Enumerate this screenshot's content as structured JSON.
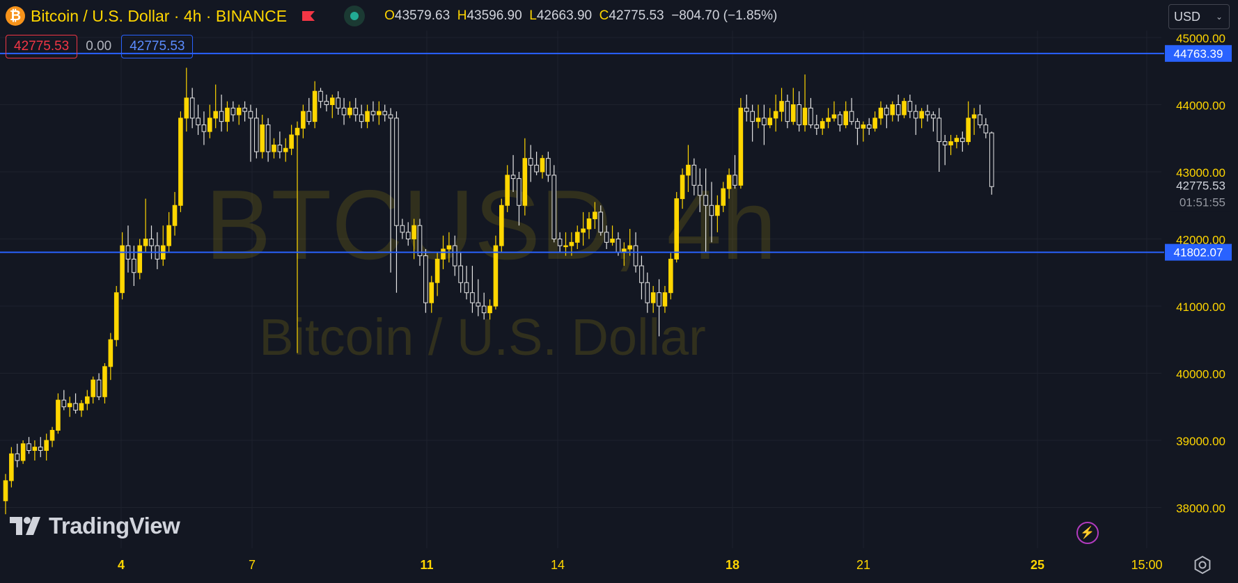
{
  "header": {
    "symbol_title": "Bitcoin / U.S. Dollar · 4h · BINANCE",
    "ohlc": {
      "o_label": "O",
      "o": "43579.63",
      "h_label": "H",
      "h": "43596.90",
      "l_label": "L",
      "l": "42663.90",
      "c_label": "C",
      "c": "42775.53",
      "change": "−804.70 (−1.85%)"
    },
    "sell_price": "42775.53",
    "spread": "0.00",
    "buy_price": "42775.53",
    "currency": "USD"
  },
  "watermark": {
    "line1": "BTCUSD, 4h",
    "line2": "Bitcoin / U.S. Dollar"
  },
  "branding": {
    "logo_text": "TradingView"
  },
  "colors": {
    "background": "#131722",
    "candle": "#ffd600",
    "axis_text": "#ffd600",
    "hline": "#2962ff",
    "grid": "#1e222d"
  },
  "chart_data": {
    "type": "candlestick",
    "timeframe": "4h",
    "ylim": [
      37500,
      45000
    ],
    "y_ticks": [
      "38000.00",
      "39000.00",
      "40000.00",
      "41000.00",
      "42000.00",
      "43000.00",
      "44000.00",
      "45000.00"
    ],
    "x_tick_labels": [
      {
        "label": "4",
        "bold": true
      },
      {
        "label": "7",
        "bold": false
      },
      {
        "label": "11",
        "bold": true
      },
      {
        "label": "14",
        "bold": false
      },
      {
        "label": "18",
        "bold": true
      },
      {
        "label": "21",
        "bold": false
      },
      {
        "label": "25",
        "bold": true
      },
      {
        "label": "15:00",
        "bold": false
      }
    ],
    "horizontal_lines": [
      {
        "price": 44763.39,
        "label": "44763.39"
      },
      {
        "price": 41802.07,
        "label": "41802.07"
      }
    ],
    "last_price": {
      "value": "42775.53",
      "countdown": "01:51:55"
    },
    "candles_ohlc": [
      [
        38100,
        38500,
        37900,
        38400
      ],
      [
        38400,
        38900,
        38300,
        38800
      ],
      [
        38800,
        38950,
        38600,
        38700
      ],
      [
        38700,
        39000,
        38650,
        38950
      ],
      [
        38950,
        39050,
        38800,
        38850
      ],
      [
        38850,
        39000,
        38700,
        38900
      ],
      [
        38900,
        39050,
        38750,
        38850
      ],
      [
        38850,
        39100,
        38700,
        39000
      ],
      [
        39000,
        39200,
        38900,
        39150
      ],
      [
        39150,
        39700,
        39100,
        39600
      ],
      [
        39600,
        39750,
        39450,
        39500
      ],
      [
        39500,
        39650,
        39350,
        39550
      ],
      [
        39550,
        39700,
        39400,
        39450
      ],
      [
        39450,
        39600,
        39350,
        39550
      ],
      [
        39550,
        39750,
        39450,
        39650
      ],
      [
        39650,
        39950,
        39550,
        39900
      ],
      [
        39900,
        40000,
        39600,
        39650
      ],
      [
        39650,
        40150,
        39550,
        40100
      ],
      [
        40100,
        40600,
        39900,
        40500
      ],
      [
        40500,
        41300,
        40400,
        41200
      ],
      [
        41200,
        42100,
        41100,
        41900
      ],
      [
        41900,
        42200,
        41500,
        41700
      ],
      [
        41700,
        41900,
        41300,
        41500
      ],
      [
        41500,
        42000,
        41400,
        41900
      ],
      [
        41900,
        42600,
        41800,
        42000
      ],
      [
        42000,
        42200,
        41700,
        41900
      ],
      [
        41900,
        42100,
        41550,
        41700
      ],
      [
        41700,
        42200,
        41600,
        41900
      ],
      [
        41900,
        42400,
        41800,
        42200
      ],
      [
        42200,
        42700,
        42050,
        42500
      ],
      [
        42500,
        43900,
        42400,
        43800
      ],
      [
        43800,
        44550,
        43600,
        44100
      ],
      [
        44100,
        44250,
        43650,
        43800
      ],
      [
        43800,
        44000,
        43550,
        43700
      ],
      [
        43700,
        43900,
        43400,
        43600
      ],
      [
        43600,
        44000,
        43500,
        43800
      ],
      [
        43800,
        44300,
        43650,
        43900
      ],
      [
        43900,
        44150,
        43600,
        43750
      ],
      [
        43750,
        44050,
        43600,
        43950
      ],
      [
        43950,
        44050,
        43750,
        43850
      ],
      [
        43850,
        44000,
        43700,
        43950
      ],
      [
        43950,
        44050,
        43750,
        43900
      ],
      [
        43900,
        44000,
        43150,
        43800
      ],
      [
        43800,
        43950,
        43200,
        43300
      ],
      [
        43300,
        43850,
        43200,
        43700
      ],
      [
        43700,
        43800,
        43150,
        43300
      ],
      [
        43300,
        43500,
        43200,
        43400
      ],
      [
        43400,
        43600,
        43200,
        43300
      ],
      [
        43300,
        43500,
        43150,
        43350
      ],
      [
        43350,
        43700,
        43250,
        43550
      ],
      [
        43550,
        43750,
        40300,
        43650
      ],
      [
        43650,
        44000,
        43500,
        43900
      ],
      [
        43900,
        44100,
        43700,
        43750
      ],
      [
        43750,
        44350,
        43650,
        44200
      ],
      [
        44200,
        44250,
        43950,
        44050
      ],
      [
        44050,
        44150,
        43900,
        44000
      ],
      [
        44000,
        44150,
        43800,
        44100
      ],
      [
        44100,
        44200,
        43850,
        43950
      ],
      [
        43950,
        44100,
        43700,
        43850
      ],
      [
        43850,
        44050,
        43800,
        43950
      ],
      [
        43950,
        44100,
        43750,
        43850
      ],
      [
        43850,
        44000,
        43650,
        43750
      ],
      [
        43750,
        44000,
        43650,
        43900
      ],
      [
        43900,
        44050,
        43750,
        43850
      ],
      [
        43850,
        44050,
        43700,
        43900
      ],
      [
        43900,
        44000,
        43750,
        43850
      ],
      [
        43850,
        43950,
        41500,
        43800
      ],
      [
        43800,
        43900,
        41200,
        42200
      ],
      [
        42200,
        42300,
        42000,
        42100
      ],
      [
        42100,
        42250,
        41900,
        42000
      ],
      [
        42000,
        42300,
        41700,
        42200
      ],
      [
        42200,
        42300,
        41600,
        41750
      ],
      [
        41750,
        41850,
        40900,
        41050
      ],
      [
        41050,
        41450,
        40900,
        41350
      ],
      [
        41350,
        41800,
        41150,
        41700
      ],
      [
        41700,
        42050,
        41550,
        41850
      ],
      [
        41850,
        42100,
        41650,
        41900
      ],
      [
        41900,
        42050,
        41450,
        41600
      ],
      [
        41600,
        41800,
        41200,
        41350
      ],
      [
        41350,
        41600,
        41100,
        41200
      ],
      [
        41200,
        41600,
        40900,
        41050
      ],
      [
        41050,
        41400,
        40850,
        41000
      ],
      [
        41000,
        41200,
        40800,
        40900
      ],
      [
        40900,
        41100,
        40800,
        41000
      ],
      [
        41000,
        42050,
        40950,
        41900
      ],
      [
        41900,
        42600,
        41800,
        42500
      ],
      [
        42500,
        43100,
        42400,
        42950
      ],
      [
        42950,
        43250,
        42700,
        42900
      ],
      [
        42900,
        43000,
        42200,
        42500
      ],
      [
        42500,
        43500,
        42350,
        43200
      ],
      [
        43200,
        43400,
        42850,
        43100
      ],
      [
        43100,
        43300,
        42950,
        43000
      ],
      [
        43000,
        43250,
        42900,
        43200
      ],
      [
        43200,
        43300,
        42850,
        42950
      ],
      [
        42950,
        43100,
        41950,
        42000
      ],
      [
        42000,
        42100,
        41800,
        41900
      ],
      [
        41900,
        42100,
        41750,
        41900
      ],
      [
        41900,
        42100,
        41750,
        41950
      ],
      [
        41950,
        42200,
        41850,
        42100
      ],
      [
        42100,
        42400,
        41900,
        42150
      ],
      [
        42150,
        42400,
        42000,
        42300
      ],
      [
        42300,
        42550,
        42150,
        42400
      ],
      [
        42400,
        42500,
        42050,
        42100
      ],
      [
        42100,
        42200,
        41850,
        41950
      ],
      [
        41950,
        42200,
        41900,
        42000
      ],
      [
        42000,
        42100,
        41750,
        41800
      ],
      [
        41800,
        41950,
        41600,
        41850
      ],
      [
        41850,
        42150,
        41750,
        41900
      ],
      [
        41900,
        42100,
        41500,
        41600
      ],
      [
        41600,
        41750,
        41100,
        41350
      ],
      [
        41350,
        41500,
        40900,
        41050
      ],
      [
        41050,
        41300,
        40900,
        41200
      ],
      [
        41200,
        41400,
        40550,
        41000
      ],
      [
        41000,
        41300,
        40900,
        41200
      ],
      [
        41200,
        41800,
        41100,
        41700
      ],
      [
        41700,
        42700,
        41650,
        42600
      ],
      [
        42600,
        43050,
        42450,
        42950
      ],
      [
        42950,
        43400,
        42700,
        43100
      ],
      [
        43100,
        43200,
        42650,
        42800
      ],
      [
        42800,
        43050,
        42400,
        42650
      ],
      [
        42650,
        43050,
        41800,
        42500
      ],
      [
        42500,
        42850,
        41950,
        42350
      ],
      [
        42350,
        42650,
        42100,
        42500
      ],
      [
        42500,
        42850,
        42400,
        42750
      ],
      [
        42750,
        43050,
        42600,
        42950
      ],
      [
        42950,
        43250,
        42750,
        42800
      ],
      [
        42800,
        44100,
        42750,
        43950
      ],
      [
        43950,
        44150,
        43750,
        43900
      ],
      [
        43900,
        44000,
        43450,
        43750
      ],
      [
        43750,
        44000,
        43650,
        43800
      ],
      [
        43800,
        44000,
        43400,
        43700
      ],
      [
        43700,
        43950,
        43650,
        43800
      ],
      [
        43800,
        44150,
        43600,
        43900
      ],
      [
        43900,
        44250,
        43750,
        44050
      ],
      [
        44050,
        44150,
        43650,
        43750
      ],
      [
        43750,
        44250,
        43700,
        44000
      ],
      [
        44000,
        44200,
        43600,
        43700
      ],
      [
        43700,
        44450,
        43600,
        43950
      ],
      [
        43950,
        44100,
        43650,
        43700
      ],
      [
        43700,
        43850,
        43550,
        43650
      ],
      [
        43650,
        43800,
        43550,
        43750
      ],
      [
        43750,
        43950,
        43650,
        43800
      ],
      [
        43800,
        44050,
        43750,
        43850
      ],
      [
        43850,
        43900,
        43600,
        43700
      ],
      [
        43700,
        44050,
        43650,
        43900
      ],
      [
        43900,
        44100,
        43700,
        43750
      ],
      [
        43750,
        43800,
        43400,
        43650
      ],
      [
        43650,
        43750,
        43450,
        43700
      ],
      [
        43700,
        43800,
        43550,
        43650
      ],
      [
        43650,
        43900,
        43600,
        43800
      ],
      [
        43800,
        44050,
        43700,
        43950
      ],
      [
        43950,
        44000,
        43650,
        43850
      ],
      [
        43850,
        44050,
        43750,
        44000
      ],
      [
        44000,
        44150,
        43750,
        43850
      ],
      [
        43850,
        44100,
        43800,
        44050
      ],
      [
        44050,
        44150,
        43800,
        43900
      ],
      [
        43900,
        44000,
        43550,
        43800
      ],
      [
        43800,
        43950,
        43650,
        43900
      ],
      [
        43900,
        44000,
        43750,
        43850
      ],
      [
        43850,
        43900,
        43600,
        43800
      ],
      [
        43800,
        43950,
        43000,
        43450
      ],
      [
        43450,
        43550,
        43100,
        43400
      ],
      [
        43400,
        43550,
        43250,
        43450
      ],
      [
        43450,
        43550,
        43350,
        43500
      ],
      [
        43500,
        43600,
        43300,
        43450
      ],
      [
        43450,
        44050,
        43400,
        43800
      ],
      [
        43800,
        43950,
        43550,
        43850
      ],
      [
        43850,
        44000,
        43650,
        43700
      ],
      [
        43700,
        43800,
        43500,
        43580
      ],
      [
        43580,
        43600,
        42660,
        42780
      ]
    ]
  }
}
